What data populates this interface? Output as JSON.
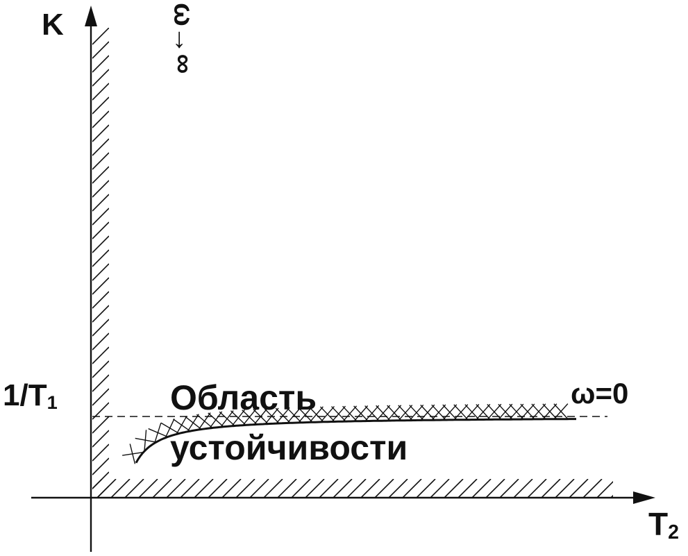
{
  "diagram": {
    "y_axis_label": "K",
    "x_axis_label": {
      "base": "T",
      "subscript": "2"
    },
    "y_marker_label": {
      "base": "1/T",
      "subscript": "1"
    },
    "region_label_line1": "Область",
    "region_label_line2": "устойчивости",
    "curve_end_label": "ω=0",
    "curve_start_label": "ω→∞",
    "colors": {
      "ink": "#111111",
      "background": "#ffffff"
    }
  }
}
